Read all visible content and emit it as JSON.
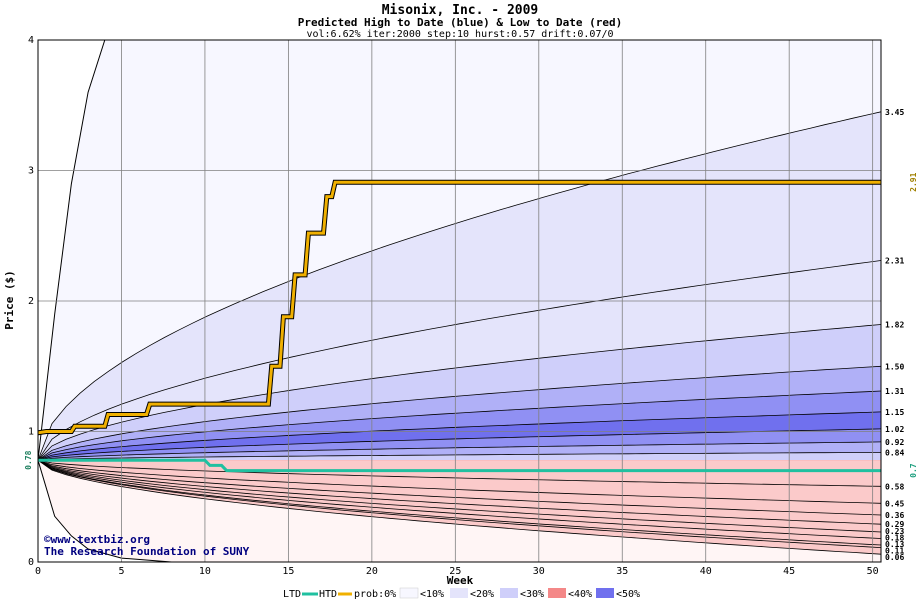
{
  "chart_data": {
    "type": "area",
    "title": "Misonix, Inc. - 2009",
    "subtitle": "Predicted High to Date (blue) &  Low to Date (red)",
    "params": "vol:6.62% iter:2000 step:10 hurst:0.57 drift:0.07/0",
    "xlabel": "Week",
    "ylabel": "Price ($)",
    "xlim": [
      0,
      50.5
    ],
    "ylim": [
      0,
      4
    ],
    "x_ticks": [
      0,
      5,
      10,
      15,
      20,
      25,
      30,
      35,
      40,
      45,
      50
    ],
    "x_tick_labels": [
      "0",
      "5",
      "10",
      "15",
      "20",
      "25",
      "30",
      "35",
      "40",
      "45",
      "50"
    ],
    "y_ticks": [
      0,
      1,
      2,
      3,
      4
    ],
    "y_tick_labels": [
      "0",
      "1",
      "2",
      "3",
      "4"
    ],
    "grid": true,
    "start_price": 0.78,
    "start_label": "0.78",
    "colors": {
      "band_0": "#f7f7ff",
      "band_10": "#e4e4fb",
      "band_20": "#cfcffa",
      "band_30": "#b0b0f7",
      "band_40": "#9090f3",
      "band_50": "#7070ee",
      "red_0": "#fff5f5",
      "red_10": "#fde2e2",
      "red_20": "#fbcaca",
      "red_30": "#f8aaaa",
      "red_40": "#f48888",
      "red_50": "#ee6a6a",
      "htd": "#f0b000",
      "ltd": "#20c0a0",
      "grid": "#808080"
    },
    "blue_quantiles": [
      {
        "end_label": "3.45",
        "end": 3.45
      },
      {
        "end_label": "2.31",
        "end": 2.31
      },
      {
        "end_label": "1.82",
        "end": 1.82
      },
      {
        "end_label": "1.50",
        "end": 1.5
      },
      {
        "end_label": "1.31",
        "end": 1.31
      },
      {
        "end_label": "1.15",
        "end": 1.15
      },
      {
        "end_label": "1.02",
        "end": 1.02
      },
      {
        "end_label": "0.92",
        "end": 0.92
      },
      {
        "end_label": "0.84",
        "end": 0.84
      }
    ],
    "red_quantiles": [
      {
        "end_label": "0.58",
        "end": 0.58
      },
      {
        "end_label": "0.45",
        "end": 0.45
      },
      {
        "end_label": "0.36",
        "end": 0.36
      },
      {
        "end_label": "0.29",
        "end": 0.29
      },
      {
        "end_label": "0.23",
        "end": 0.23
      },
      {
        "end_label": "0.18",
        "end": 0.18
      },
      {
        "end_label": "0.13",
        "end": 0.13
      },
      {
        "end_label": "0.11",
        "end": 0.11
      },
      {
        "end_label": "0.06",
        "end": 0.06
      }
    ],
    "htd_series": {
      "name": "HTD",
      "x": [
        0,
        0.5,
        2,
        2.2,
        4,
        4.2,
        6.5,
        6.7,
        13.8,
        14,
        14.5,
        14.7,
        15.2,
        15.4,
        16,
        16.2,
        17.1,
        17.3,
        17.6,
        17.8,
        50.5
      ],
      "y": [
        0.99,
        1.0,
        1.0,
        1.04,
        1.04,
        1.13,
        1.13,
        1.21,
        1.21,
        1.5,
        1.5,
        1.88,
        1.88,
        2.2,
        2.2,
        2.52,
        2.52,
        2.8,
        2.8,
        2.91,
        2.91
      ],
      "end_label": "2.91"
    },
    "ltd_series": {
      "name": "LTD",
      "x": [
        0,
        0.5,
        10,
        10.3,
        11,
        11.3,
        50.5
      ],
      "y": [
        0.78,
        0.78,
        0.78,
        0.74,
        0.74,
        0.7,
        0.7
      ],
      "end_label": "0.7"
    },
    "outer_upper_curve": {
      "x": [
        0,
        1,
        2,
        3,
        4
      ],
      "y": [
        0.78,
        1.9,
        2.9,
        3.6,
        4.0
      ]
    },
    "outer_lower_curve": {
      "x": [
        0,
        1,
        2,
        3,
        5,
        8
      ],
      "y": [
        0.78,
        0.35,
        0.2,
        0.1,
        0.03,
        0.0
      ]
    },
    "credits": [
      "©www.textbiz.org",
      "The Research Foundation of SUNY"
    ],
    "legend": {
      "ltd_label": "LTD",
      "htd_label": "HTD",
      "prob_label": "prob:0%",
      "items": [
        "<10%",
        "<20%",
        "<30%",
        "<40%",
        "<50%"
      ]
    }
  }
}
